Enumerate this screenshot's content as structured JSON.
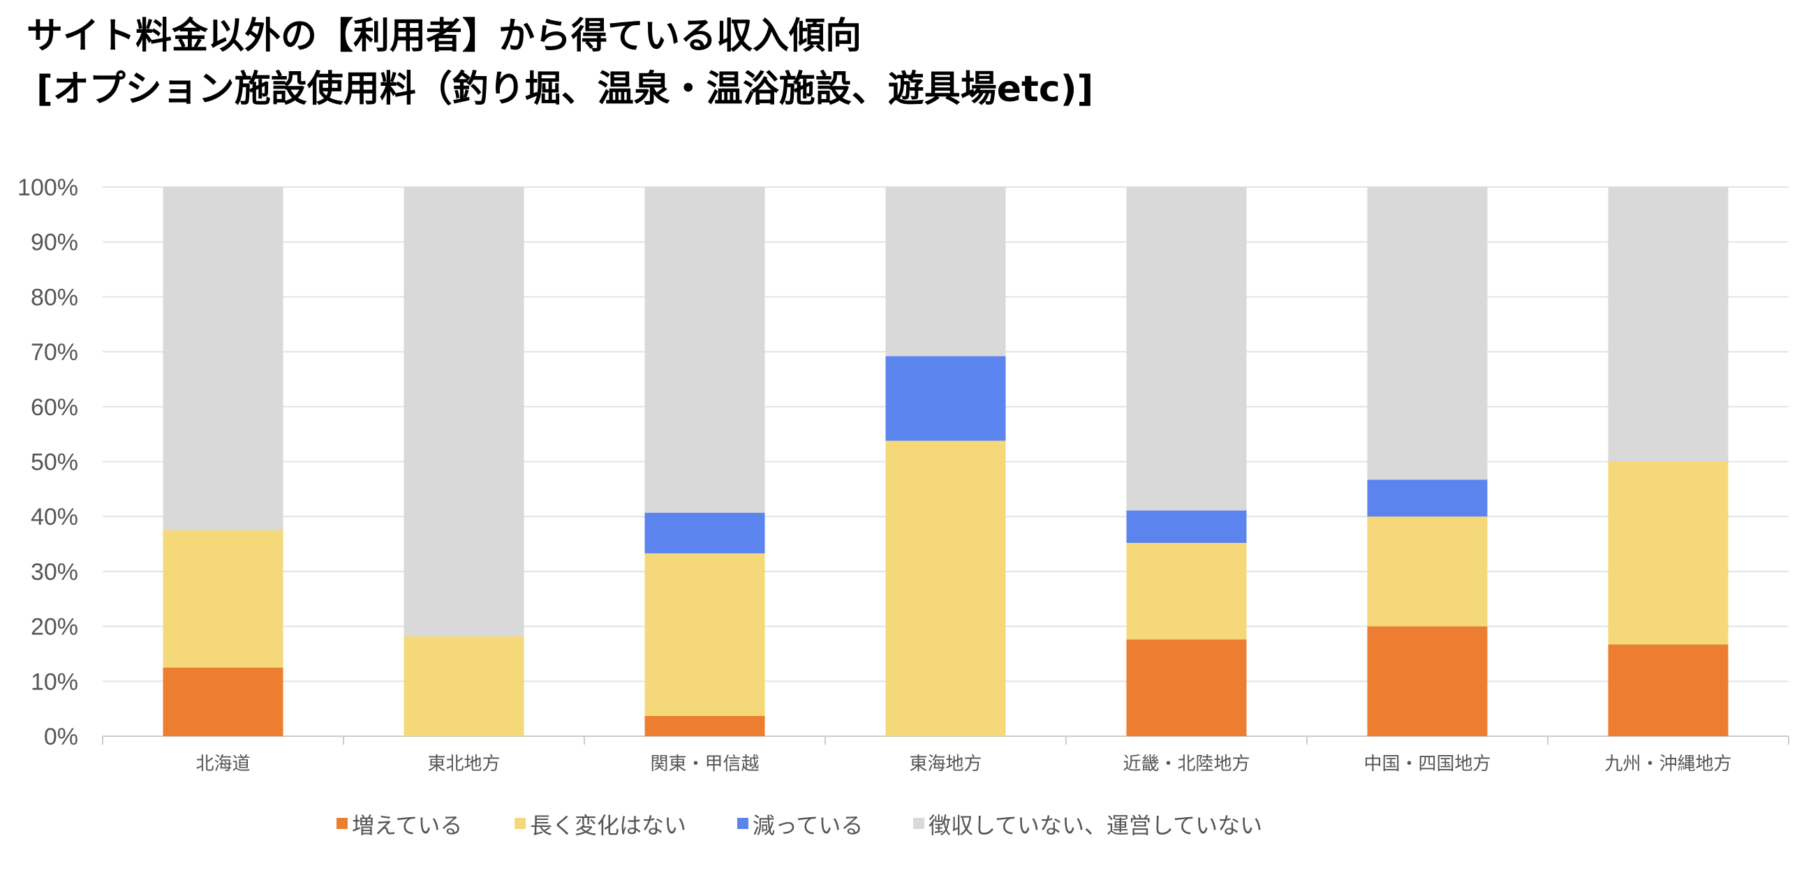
{
  "title": {
    "line1": "サイト料金以外の【利用者】から得ている収入傾向",
    "line2": "[オプション施設使用料（釣り堀、温泉・温浴施設、遊具場etc)]"
  },
  "chart_data": {
    "type": "bar",
    "stacked": true,
    "categories": [
      "北海道",
      "東北地方",
      "関東・甲信越",
      "東海地方",
      "近畿・北陸地方",
      "中国・四国地方",
      "九州・沖縄地方"
    ],
    "series": [
      {
        "name": "増えている",
        "color": "#ED7D31",
        "values": [
          12.5,
          0,
          3.7,
          0,
          17.6,
          20.0,
          16.7
        ]
      },
      {
        "name": "長く変化はない",
        "color": "#F4D87A",
        "values": [
          25.0,
          18.2,
          29.6,
          53.8,
          17.6,
          20.0,
          33.3
        ]
      },
      {
        "name": "減っている",
        "color": "#5B84EE",
        "values": [
          0,
          0,
          7.4,
          15.4,
          5.9,
          6.7,
          0
        ]
      },
      {
        "name": "徴収していない、運営していない",
        "color": "#D9D9D9",
        "values": [
          62.5,
          81.8,
          59.3,
          30.8,
          58.9,
          53.3,
          50.0
        ]
      }
    ],
    "y_ticks": [
      "0%",
      "10%",
      "20%",
      "30%",
      "40%",
      "50%",
      "60%",
      "70%",
      "80%",
      "90%",
      "100%"
    ],
    "ylim": [
      0,
      100
    ],
    "grid": true,
    "legend_position": "bottom"
  }
}
